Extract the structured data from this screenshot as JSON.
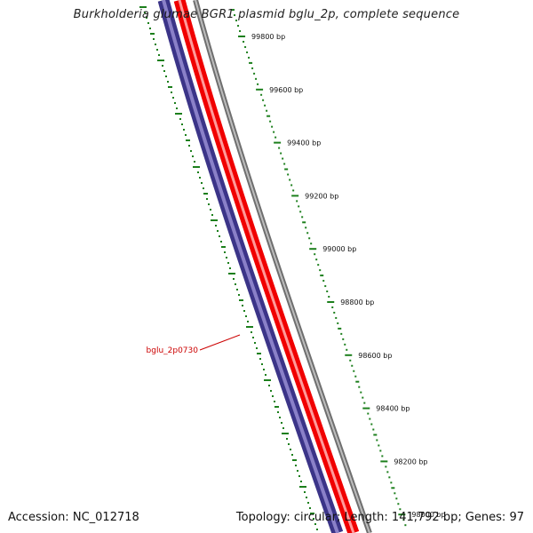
{
  "title": "Burkholderia glumae BGR1 plasmid bglu_2p, complete sequence",
  "footer": {
    "accession_label": "Accession:",
    "accession": "NC_012718",
    "topology_label": "Topology:",
    "topology": "circular",
    "length_label": "Length:",
    "length": "141,792 bp",
    "genes_label": "Genes:",
    "genes": "97"
  },
  "ticks": [
    {
      "label": "99800 bp"
    },
    {
      "label": "99600 bp"
    },
    {
      "label": "99400 bp"
    },
    {
      "label": "99200 bp"
    },
    {
      "label": "99000 bp"
    },
    {
      "label": "98800 bp"
    },
    {
      "label": "98600 bp"
    },
    {
      "label": "98400 bp"
    },
    {
      "label": "98200 bp"
    },
    {
      "label": "98000 bp"
    }
  ],
  "gene_label": "bglu_2p0730",
  "colors": {
    "forward_strand": "#ff0000",
    "reverse_strand": "#4a4090",
    "backbone": "#777777",
    "ticks": "#1c7f1c",
    "gene_label": "#cc0000"
  }
}
